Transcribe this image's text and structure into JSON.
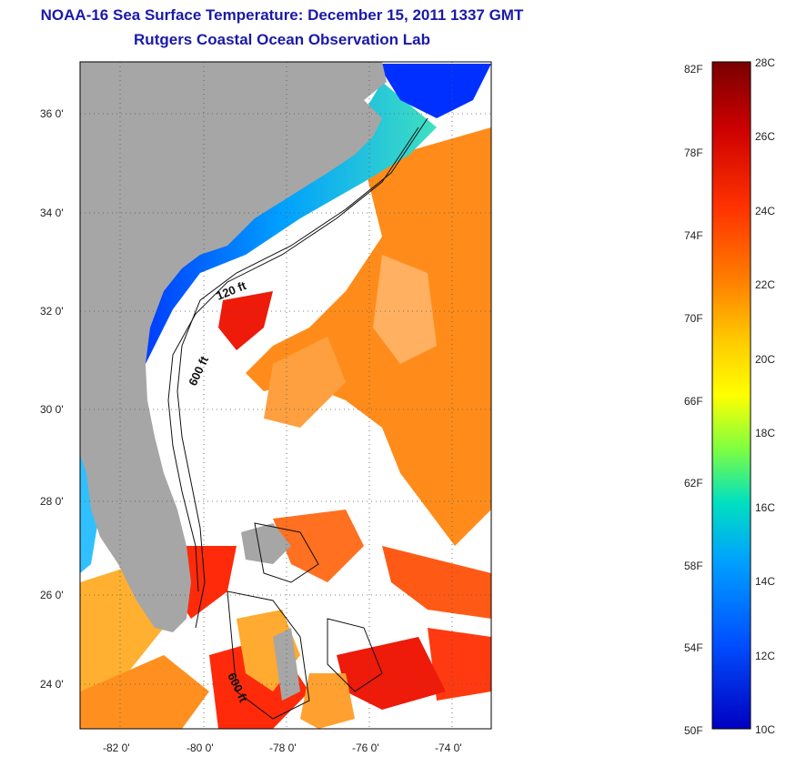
{
  "title": {
    "line1": "NOAA-16 Sea Surface Temperature:  December 15, 2011 1337 GMT",
    "line2": "Rutgers Coastal Ocean Observation Lab"
  },
  "map": {
    "lat_ticks": [
      "36 0'",
      "34 0'",
      "32 0'",
      "30 0'",
      "28 0'",
      "26 0'",
      "24 0'"
    ],
    "lon_ticks": [
      "-82 0'",
      "-80 0'",
      "-78 0'",
      "-76 0'",
      "-74 0'"
    ],
    "contour_labels": {
      "c120_top": "120 ft",
      "c600_mid": "600 ft",
      "c600_bottom": "600 ft"
    },
    "colors": {
      "land": "#a6a6a6",
      "ocean_nodata": "#ffffff",
      "cold": "#0033cc",
      "warm": "#ff3300"
    }
  },
  "colorbar": {
    "fahrenheit": [
      "82F",
      "78F",
      "74F",
      "70F",
      "66F",
      "62F",
      "58F",
      "54F",
      "50F"
    ],
    "celsius": [
      "28C",
      "26C",
      "24C",
      "22C",
      "20C",
      "18C",
      "16C",
      "14C",
      "12C",
      "10C"
    ],
    "gradient_stops": [
      "#7a0000",
      "#cc0000",
      "#ff3300",
      "#ff8000",
      "#ffcc00",
      "#ffff00",
      "#80ff40",
      "#00e0c0",
      "#00a0ff",
      "#0050ff",
      "#0000c0"
    ]
  }
}
